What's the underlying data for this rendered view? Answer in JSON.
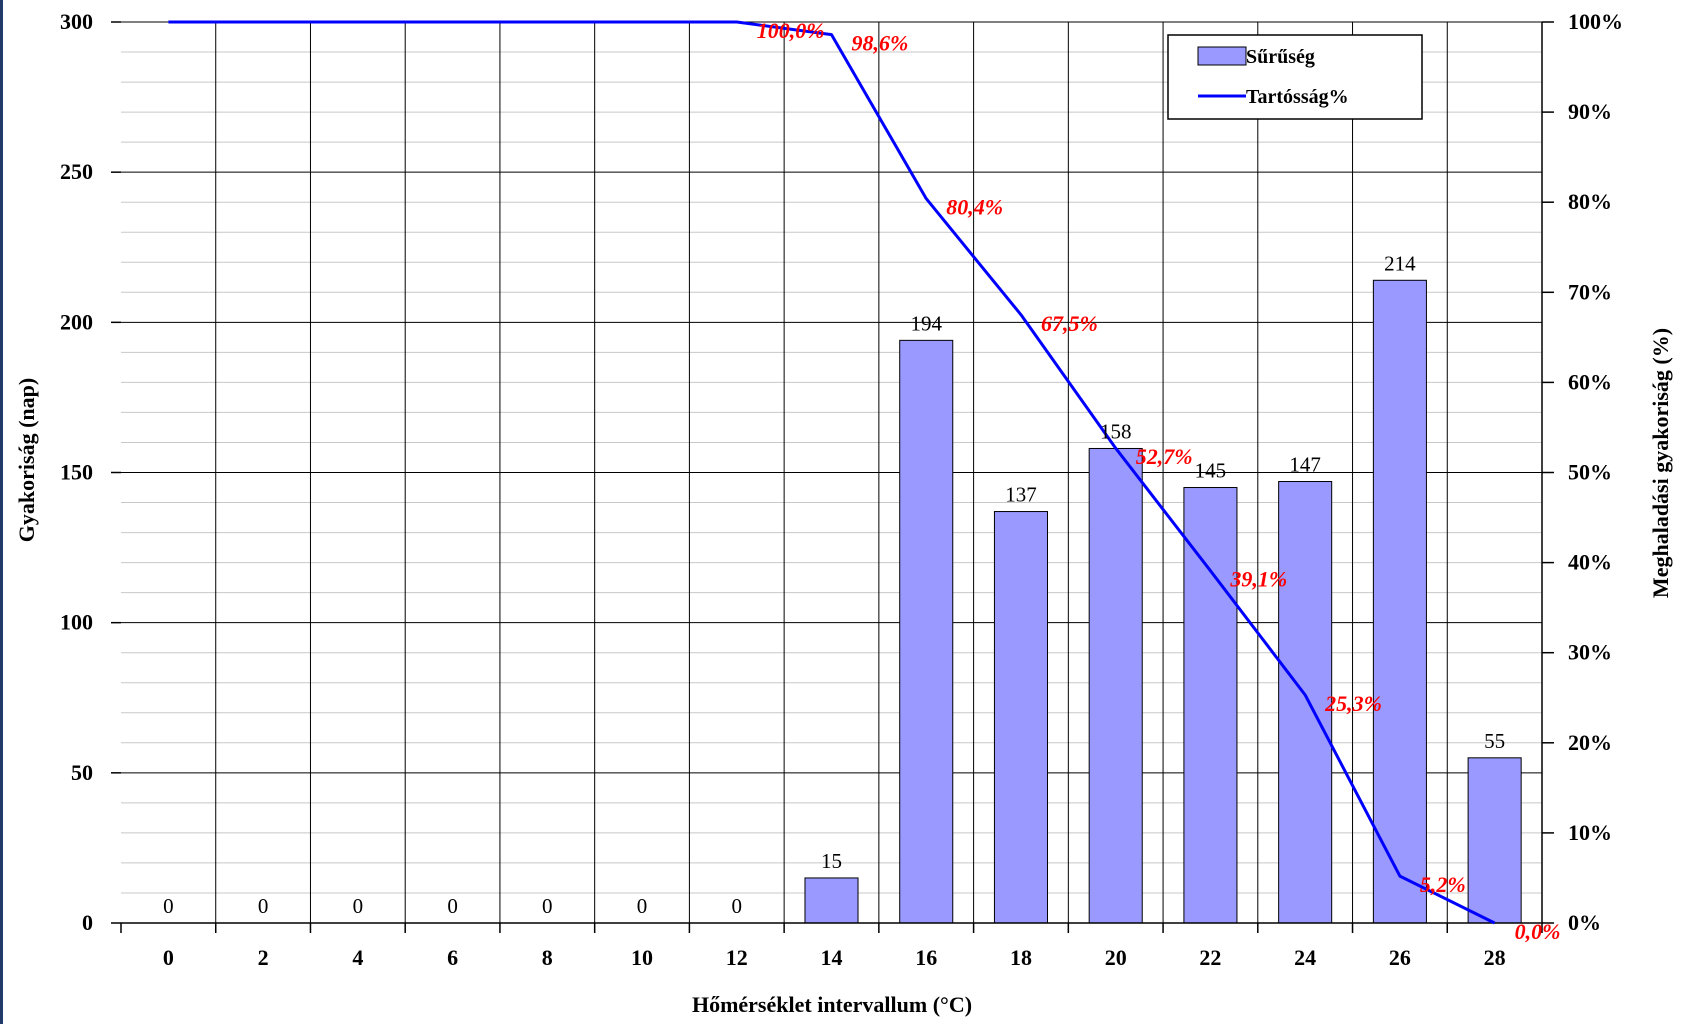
{
  "chart_data": {
    "type": "bar",
    "xlabel": "Hőmérséklet intervallum (°C)",
    "ylabel": "Gyakoriság (nap)",
    "y2label": "Meghaladási gyakoriság (%)",
    "categories": [
      "0",
      "2",
      "4",
      "6",
      "8",
      "10",
      "12",
      "14",
      "16",
      "18",
      "20",
      "22",
      "24",
      "26",
      "28"
    ],
    "ylim": [
      0,
      300
    ],
    "yticks": [
      "0",
      "50",
      "100",
      "150",
      "200",
      "250",
      "300"
    ],
    "y2lim": [
      0,
      100
    ],
    "y2ticks": [
      "0%",
      "10%",
      "20%",
      "30%",
      "40%",
      "50%",
      "60%",
      "70%",
      "80%",
      "90%",
      "100%"
    ],
    "grid": true,
    "legend_position": "top-right",
    "series": [
      {
        "name": "Sűrűség",
        "type": "bar",
        "axis": "left",
        "color": "#9999ff",
        "values": [
          0,
          0,
          0,
          0,
          0,
          0,
          0,
          15,
          194,
          137,
          158,
          145,
          147,
          214,
          55
        ],
        "labels": [
          "0",
          "0",
          "0",
          "0",
          "0",
          "0",
          "0",
          "15",
          "194",
          "137",
          "158",
          "145",
          "147",
          "214",
          "55"
        ]
      },
      {
        "name": "Tartósság%",
        "type": "line",
        "axis": "right",
        "color": "#0000ff",
        "values": [
          100,
          100,
          100,
          100,
          100,
          100,
          100,
          98.6,
          80.4,
          67.5,
          52.7,
          39.1,
          25.3,
          5.2,
          0.0
        ],
        "labels": [
          "",
          "",
          "",
          "",
          "",
          "",
          "100,0%",
          "98,6%",
          "80,4%",
          "67,5%",
          "52,7%",
          "39,1%",
          "25,3%",
          "5,2%",
          "0,0%"
        ]
      }
    ]
  }
}
